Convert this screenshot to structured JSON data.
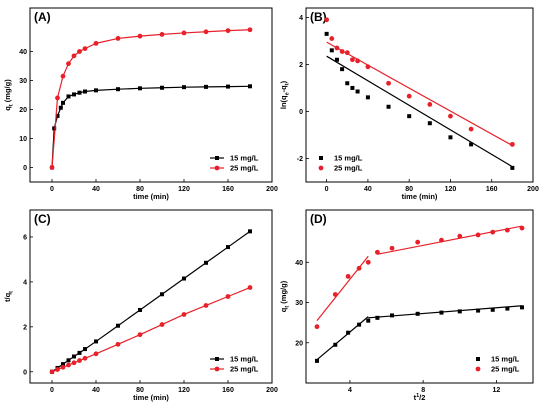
{
  "chart_data": [
    {
      "panel_label": "(A)",
      "type": "line",
      "xlabel": "time (min)",
      "ylabel": "q_t (mg/g)",
      "xlim": [
        -20,
        200
      ],
      "ylim": [
        -5,
        55
      ],
      "xticks": [
        0,
        40,
        80,
        120,
        160,
        200
      ],
      "yticks": [
        0,
        10,
        20,
        30,
        40
      ],
      "legend_position": "bottom-right",
      "series": [
        {
          "name": "15 mg/L",
          "color": "#000000",
          "marker": "square",
          "style": "line-markers",
          "x": [
            0,
            2,
            5,
            8,
            10,
            15,
            20,
            25,
            30,
            40,
            60,
            80,
            100,
            120,
            140,
            160,
            180
          ],
          "y": [
            0,
            13.5,
            17.8,
            20.6,
            22.3,
            24.5,
            25.2,
            25.8,
            26.2,
            26.6,
            27.0,
            27.3,
            27.5,
            27.7,
            27.8,
            27.9,
            28.0
          ]
        },
        {
          "name": "25 mg/L",
          "color": "#e8202a",
          "marker": "circle",
          "style": "line-markers",
          "x": [
            0,
            5,
            10,
            15,
            20,
            25,
            30,
            40,
            60,
            80,
            100,
            120,
            140,
            160,
            180
          ],
          "y": [
            0,
            24.0,
            31.5,
            35.8,
            38.5,
            40.0,
            41.0,
            42.8,
            44.5,
            45.3,
            45.9,
            46.4,
            46.8,
            47.2,
            47.5
          ]
        }
      ]
    },
    {
      "panel_label": "(B)",
      "type": "scatter",
      "xlabel": "time (min)",
      "ylabel": "ln(q_e-q_t)",
      "xlim": [
        -20,
        200
      ],
      "ylim": [
        -3,
        4.4
      ],
      "xticks": [
        0,
        40,
        80,
        120,
        160,
        200
      ],
      "yticks": [
        -2,
        0,
        2,
        4
      ],
      "legend_position": "bottom-left",
      "series": [
        {
          "name": "15 mg/L",
          "color": "#000000",
          "marker": "square",
          "x": [
            0,
            5,
            10,
            15,
            20,
            25,
            30,
            40,
            60,
            80,
            100,
            120,
            140,
            180
          ],
          "y": [
            3.3,
            2.6,
            2.2,
            1.8,
            1.2,
            1.0,
            0.85,
            0.6,
            0.2,
            -0.2,
            -0.5,
            -1.1,
            -1.4,
            -2.4
          ],
          "fit": [
            2.35,
            -2.35
          ]
        },
        {
          "name": "25 mg/L",
          "color": "#e8202a",
          "marker": "circle",
          "x": [
            0,
            5,
            10,
            15,
            20,
            25,
            30,
            40,
            60,
            80,
            100,
            120,
            140,
            180
          ],
          "y": [
            3.9,
            3.1,
            2.7,
            2.55,
            2.5,
            2.2,
            2.15,
            1.9,
            1.2,
            0.65,
            0.3,
            -0.2,
            -0.75,
            -1.4
          ],
          "fit": [
            2.95,
            -1.45
          ]
        }
      ]
    },
    {
      "panel_label": "(C)",
      "type": "line",
      "xlabel": "time (min)",
      "ylabel": "t/q_t",
      "xlim": [
        -20,
        200
      ],
      "ylim": [
        -0.5,
        7.2
      ],
      "xticks": [
        0,
        40,
        80,
        120,
        160,
        200
      ],
      "yticks": [
        0,
        2,
        4,
        6
      ],
      "legend_position": "bottom-right",
      "series": [
        {
          "name": "15 mg/L",
          "color": "#000000",
          "marker": "square",
          "style": "line-markers",
          "x": [
            0,
            5,
            10,
            15,
            20,
            25,
            30,
            40,
            60,
            80,
            100,
            120,
            140,
            160,
            180
          ],
          "y": [
            0,
            0.17,
            0.34,
            0.51,
            0.68,
            0.84,
            1.01,
            1.35,
            2.05,
            2.75,
            3.45,
            4.15,
            4.85,
            5.55,
            6.25
          ]
        },
        {
          "name": "25 mg/L",
          "color": "#e8202a",
          "marker": "circle",
          "style": "line-markers",
          "x": [
            0,
            5,
            10,
            15,
            20,
            25,
            30,
            40,
            60,
            80,
            100,
            120,
            140,
            160,
            180
          ],
          "y": [
            0,
            0.1,
            0.2,
            0.3,
            0.4,
            0.5,
            0.6,
            0.8,
            1.22,
            1.65,
            2.1,
            2.55,
            2.95,
            3.35,
            3.75
          ]
        }
      ]
    },
    {
      "panel_label": "(D)",
      "type": "scatter",
      "xlabel": "t^1/2",
      "ylabel": "q_t (mg/g)",
      "xlim": [
        1.6,
        14.0
      ],
      "ylim": [
        10,
        53
      ],
      "xticks": [
        4,
        8,
        12
      ],
      "yticks": [
        20,
        30,
        40
      ],
      "legend_position": "bottom-right",
      "series": [
        {
          "name": "15 mg/L",
          "color": "#000000",
          "marker": "square",
          "x": [
            2.2,
            3.2,
            3.9,
            4.5,
            5.0,
            5.5,
            6.3,
            7.7,
            9.0,
            10.0,
            11.0,
            11.8,
            12.6,
            13.4
          ],
          "y": [
            15.5,
            19.5,
            22.5,
            24.5,
            25.5,
            26.2,
            26.8,
            27.2,
            27.5,
            27.8,
            28.0,
            28.2,
            28.5,
            28.8
          ],
          "fits": [
            [
              2.2,
              15.8,
              5.0,
              26.5
            ],
            [
              5.0,
              26.2,
              13.4,
              29.2
            ]
          ]
        },
        {
          "name": "25 mg/L",
          "color": "#e8202a",
          "marker": "circle",
          "x": [
            2.2,
            3.2,
            3.9,
            4.5,
            5.0,
            5.5,
            6.3,
            7.7,
            9.0,
            10.0,
            11.0,
            11.8,
            12.6,
            13.4
          ],
          "y": [
            24.0,
            32.0,
            36.5,
            38.5,
            40.0,
            42.5,
            43.5,
            45.0,
            45.5,
            46.5,
            46.8,
            47.5,
            48.0,
            48.5
          ],
          "fits": [
            [
              2.2,
              25.5,
              5.0,
              41.5
            ],
            [
              5.5,
              42.0,
              13.4,
              49.0
            ]
          ]
        }
      ]
    }
  ]
}
